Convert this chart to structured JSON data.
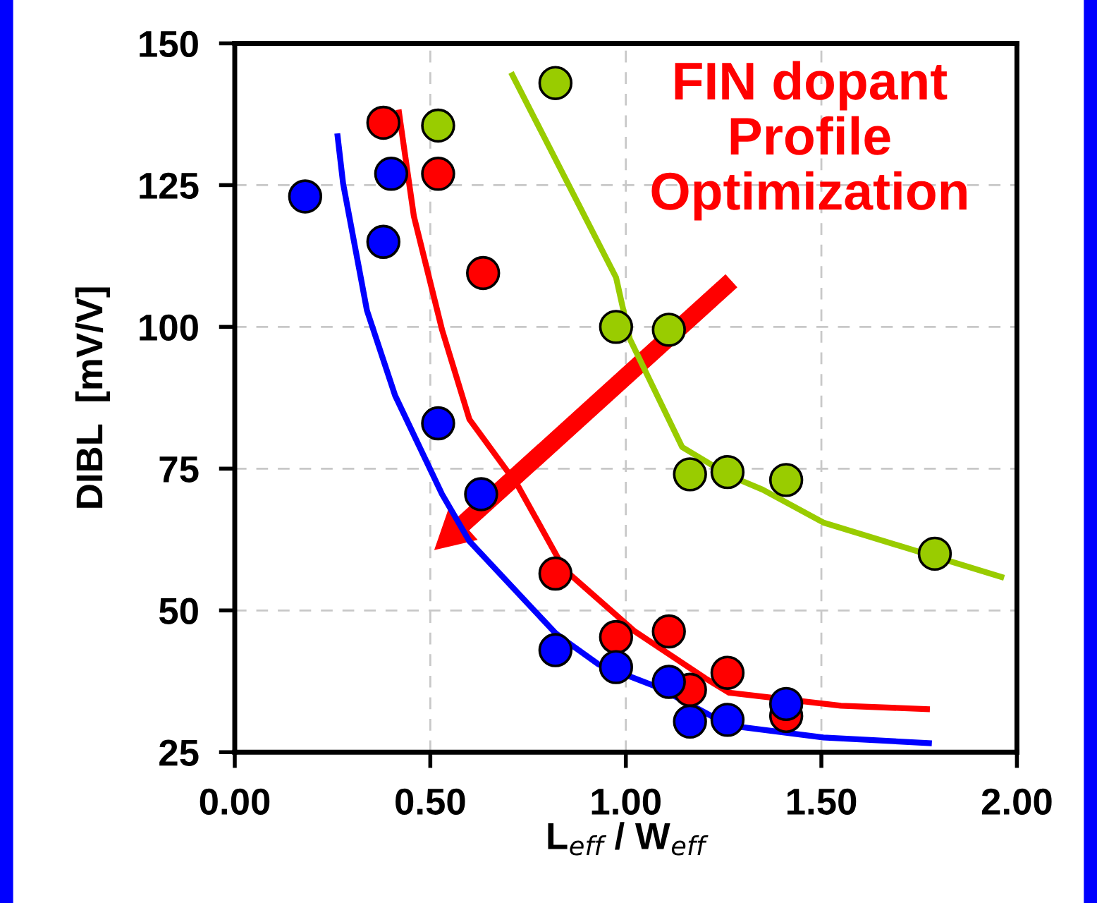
{
  "chart_data": {
    "type": "scatter",
    "xlabel": "L$_{eff}$ / W$_{eff}$",
    "ylabel": "DIBL  [mV/V]",
    "xlim": [
      0,
      2
    ],
    "xticks": [
      {
        "value": 0,
        "label": "0.00"
      },
      {
        "value": 0.5,
        "label": "0.50"
      },
      {
        "value": 1,
        "label": "1.00"
      },
      {
        "value": 1.5,
        "label": "1.50"
      },
      {
        "value": 2,
        "label": "2.00"
      }
    ],
    "ylim": [
      25,
      150
    ],
    "yticks": [
      25,
      50,
      75,
      100,
      125,
      150
    ],
    "grid": true,
    "legend": false,
    "annotations": [
      "FIN dopant\nProfile\nOptimization"
    ],
    "series": [
      {
        "type": "line",
        "color": "#0000ff",
        "marker": "none",
        "x": [
          0.263,
          0.277,
          0.338,
          0.41,
          0.53,
          0.6,
          0.82,
          0.843,
          0.93,
          1.084,
          1.264,
          1.505,
          1.775
        ],
        "values": [
          133.6,
          125.3,
          102.9,
          87.9,
          70.5,
          62.2,
          46,
          44.8,
          40.5,
          36.4,
          29.7,
          27.6,
          26.6
        ]
      },
      {
        "type": "line",
        "color": "#ff0000",
        "marker": "none",
        "x": [
          0.42,
          0.458,
          0.53,
          0.6,
          0.723,
          0.843,
          1.023,
          1.204,
          1.264,
          1.55,
          1.77
        ],
        "values": [
          137.8,
          119.5,
          99.5,
          83.7,
          72.1,
          57.2,
          46.3,
          38,
          35.5,
          33.2,
          32.6
        ]
      },
      {
        "type": "line",
        "color": "#99cc00",
        "marker": "none",
        "x": [
          0.71,
          0.975,
          1.01,
          1.144,
          1.264,
          1.35,
          1.505,
          1.685,
          1.96
        ],
        "values": [
          144.4,
          108.7,
          97.9,
          78.8,
          73.8,
          71.3,
          65.5,
          61.7,
          55.9
        ]
      },
      {
        "color": "#99cc00",
        "marker": "circle",
        "x": [
          0.52,
          0.82,
          0.975,
          1.11,
          1.164,
          1.26,
          1.41,
          1.79
        ],
        "values": [
          135.5,
          143,
          100,
          99.5,
          74,
          74.4,
          73,
          60
        ]
      },
      {
        "color": "#ff0000",
        "marker": "circle",
        "x": [
          0.38,
          0.52,
          0.635,
          0.82,
          0.975,
          1.11,
          1.164,
          1.26,
          1.41
        ],
        "values": [
          136,
          127,
          109.5,
          56.5,
          45.3,
          46.3,
          36,
          39,
          31.4
        ]
      },
      {
        "color": "#0000ff",
        "marker": "circle",
        "x": [
          0.18,
          0.4,
          0.38,
          0.52,
          0.63,
          0.82,
          0.975,
          1.11,
          1.164,
          1.26,
          1.41
        ],
        "values": [
          123,
          127,
          115,
          83,
          70.5,
          43,
          40,
          37.4,
          30.4,
          30.7,
          33.5
        ]
      }
    ]
  }
}
